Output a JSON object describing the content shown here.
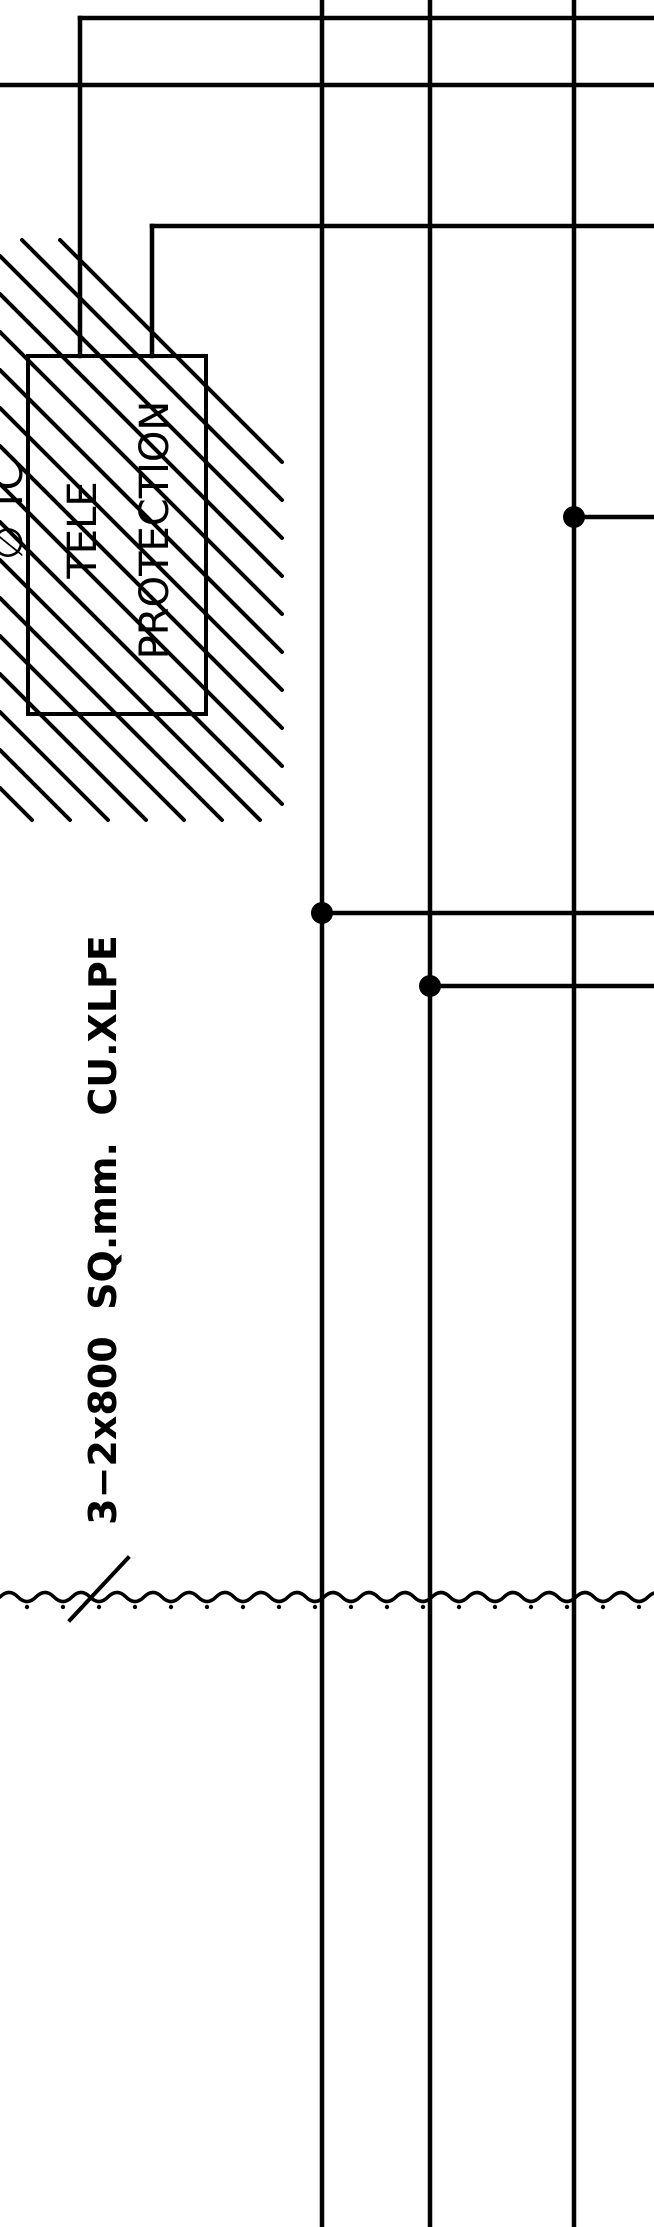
{
  "diagram": {
    "kind": "single-line-cable-diagram-fragment",
    "cable_label": "3−2x800  SQ.mm.  CU.XLPE",
    "box": {
      "line1": "TELE",
      "line2": "PROTECTION",
      "partial_text": "∅ TC"
    },
    "colors": {
      "line": "#000000",
      "background": "#ffffff"
    }
  }
}
